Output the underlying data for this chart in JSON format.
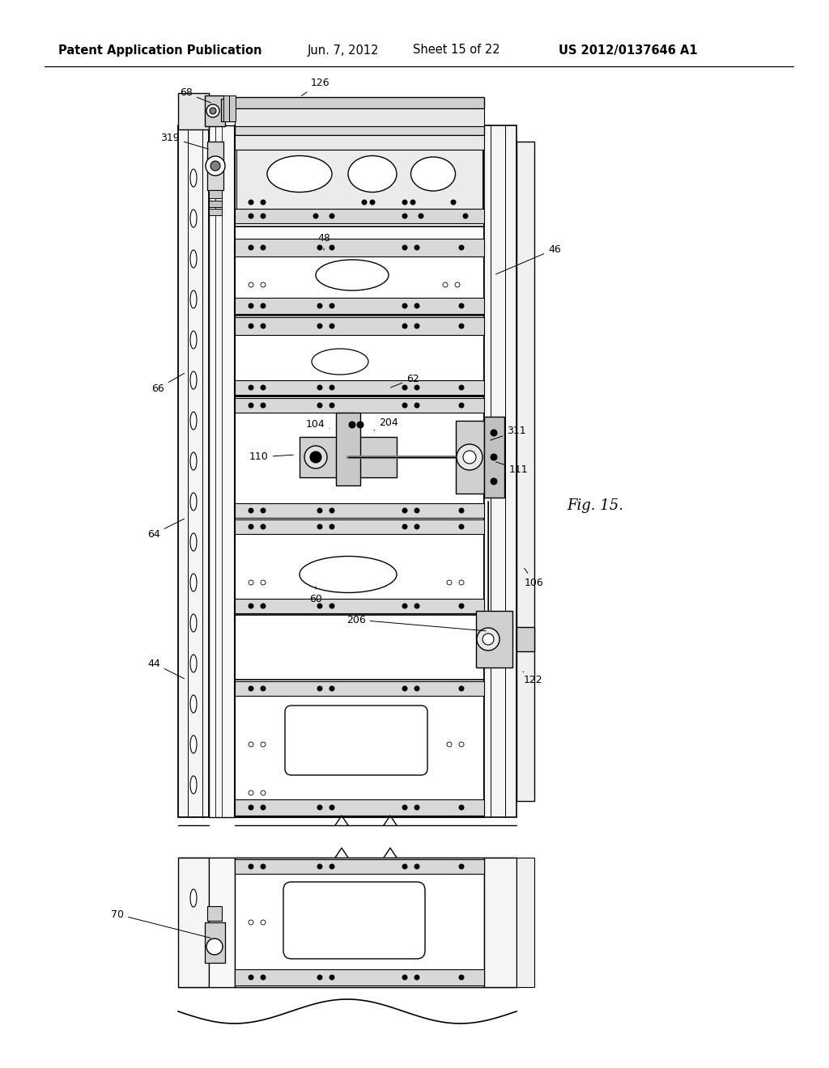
{
  "bg_color": "#ffffff",
  "header_text": "Patent Application Publication",
  "header_date": "Jun. 7, 2012",
  "header_sheet": "Sheet 15 of 22",
  "header_patent": "US 2012/0137646 A1",
  "fig_label": "Fig. 15.",
  "title_fontsize": 10.5,
  "label_fontsize": 9,
  "fig_label_fontsize": 13
}
